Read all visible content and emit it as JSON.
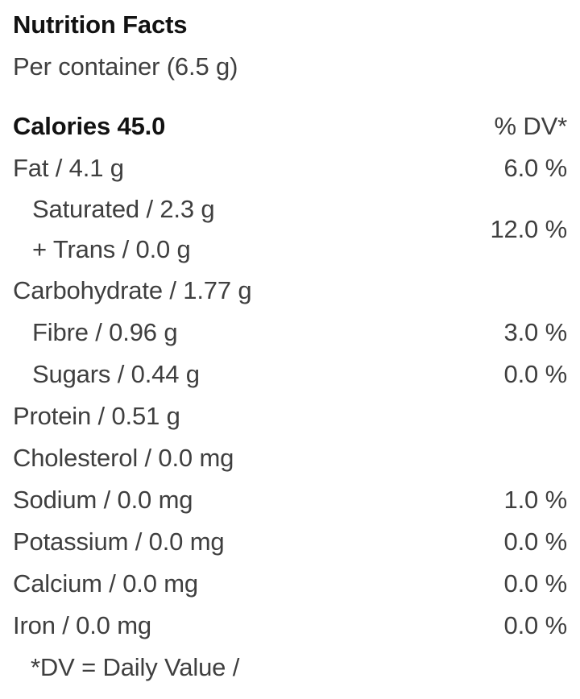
{
  "header": {
    "title": "Nutrition Facts",
    "serving": "Per container (6.5 g)"
  },
  "calories_row": {
    "label": "Calories 45.0",
    "dv_header": "% DV*"
  },
  "nutrients": [
    {
      "label": "Fat / 4.1 g",
      "dv": "6.0 %"
    },
    {
      "label": "Carbohydrate / 1.77 g",
      "dv": ""
    },
    {
      "label": "Fibre / 0.96 g",
      "dv": "3.0 %"
    },
    {
      "label": "Sugars / 0.44 g",
      "dv": "0.0 %"
    },
    {
      "label": "Protein / 0.51 g",
      "dv": ""
    },
    {
      "label": "Cholesterol / 0.0 mg",
      "dv": ""
    },
    {
      "label": "Sodium / 0.0 mg",
      "dv": "1.0 %"
    },
    {
      "label": "Potassium / 0.0 mg",
      "dv": "0.0 %"
    },
    {
      "label": "Calcium / 0.0 mg",
      "dv": "0.0 %"
    },
    {
      "label": "Iron / 0.0 mg",
      "dv": "0.0 %"
    }
  ],
  "saturated_group": {
    "lines": [
      "Saturated / 2.3 g",
      "+ Trans / 0.0 g"
    ],
    "dv": "12.0 %"
  },
  "footnote": "*DV = Daily Value /",
  "colors": {
    "title_text": "#121212",
    "body_text": "#3f3f3f",
    "background": "#ffffff"
  }
}
